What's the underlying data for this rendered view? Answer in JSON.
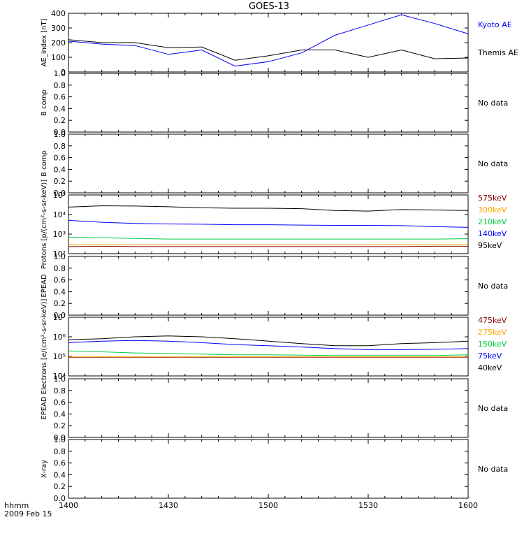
{
  "title": "GOES-13",
  "footer": {
    "hhmm": "hhmm",
    "date": "2009 Feb 15"
  },
  "x_ticks": [
    "1400",
    "1430",
    "1500",
    "1530",
    "1600"
  ],
  "colors": {
    "blue": "#0000ff",
    "black": "#000000",
    "green": "#00cc44",
    "orange": "#ffa500",
    "darkred": "#8b0000",
    "red": "#ff0000"
  },
  "chart_data": [
    {
      "type": "line",
      "ylabel": "AE_index [nT]",
      "ylim": [
        0,
        400
      ],
      "yticks": [
        "0",
        "100",
        "200",
        "300",
        "400"
      ],
      "x": [
        "1400",
        "1410",
        "1420",
        "1430",
        "1440",
        "1450",
        "1500",
        "1510",
        "1520",
        "1530",
        "1540",
        "1550",
        "1600"
      ],
      "series": [
        {
          "name": "Kyoto AE",
          "color": "#0000ff",
          "values": [
            210,
            190,
            180,
            120,
            150,
            40,
            70,
            130,
            250,
            320,
            390,
            330,
            260
          ]
        },
        {
          "name": "Themis AE",
          "color": "#000000",
          "values": [
            220,
            200,
            200,
            165,
            170,
            80,
            110,
            150,
            150,
            100,
            150,
            90,
            95
          ]
        }
      ]
    },
    {
      "type": "line",
      "ylabel": "B comp",
      "ylim": [
        0,
        1
      ],
      "yticks": [
        "0.0",
        "0.2",
        "0.4",
        "0.6",
        "0.8",
        "1.0"
      ],
      "note": "No data",
      "series": []
    },
    {
      "type": "line",
      "ylabel": "B comp",
      "ylim": [
        0,
        1
      ],
      "yticks": [
        "0.0",
        "0.2",
        "0.4",
        "0.6",
        "0.8",
        "1.0"
      ],
      "note": "No data",
      "series": []
    },
    {
      "type": "line",
      "ylabel": "Protons [p/(cm²-s-sr-keV)]",
      "ylim": [
        100,
        100000
      ],
      "yticks": [
        "10²",
        "10³",
        "10⁴",
        "10⁵"
      ],
      "x": [
        "1400",
        "1410",
        "1420",
        "1430",
        "1440",
        "1450",
        "1500",
        "1510",
        "1520",
        "1530",
        "1540",
        "1550",
        "1600"
      ],
      "series": [
        {
          "name": "575keV",
          "color": "#8b0000",
          "values": [
            230,
            240,
            230,
            230,
            230,
            230,
            230,
            230,
            230,
            230,
            230,
            240,
            240
          ]
        },
        {
          "name": "300keV",
          "color": "#ffa500",
          "values": [
            290,
            290,
            280,
            280,
            280,
            280,
            280,
            280,
            280,
            280,
            290,
            290,
            290
          ]
        },
        {
          "name": "210keV",
          "color": "#00cc44",
          "values": [
            700,
            650,
            600,
            560,
            560,
            560,
            560,
            560,
            560,
            560,
            560,
            560,
            580
          ]
        },
        {
          "name": "140keV",
          "color": "#0000ff",
          "values": [
            5000,
            4000,
            3500,
            3300,
            3200,
            3000,
            3000,
            2900,
            2800,
            2800,
            2700,
            2400,
            2200
          ]
        },
        {
          "name": "95keV",
          "color": "#000000",
          "values": [
            24000,
            28000,
            27000,
            25000,
            22000,
            21000,
            21000,
            20000,
            16000,
            15000,
            18000,
            17000,
            16000
          ]
        }
      ]
    },
    {
      "type": "line",
      "ylabel": "EPEAD",
      "ylim": [
        0,
        1
      ],
      "yticks": [
        "0.0",
        "0.2",
        "0.4",
        "0.6",
        "0.8",
        "1.0"
      ],
      "note": "No data",
      "series": []
    },
    {
      "type": "line",
      "ylabel": "Electrons [e/(cm²-s-sr-keV)]",
      "ylim": [
        10000,
        10000000
      ],
      "yticks": [
        "10⁴",
        "10⁵",
        "10⁶",
        "10⁷"
      ],
      "x": [
        "1400",
        "1410",
        "1420",
        "1430",
        "1440",
        "1450",
        "1500",
        "1510",
        "1520",
        "1530",
        "1540",
        "1550",
        "1600"
      ],
      "series": [
        {
          "name": "475keV",
          "color": "#8b0000",
          "values": [
            90000,
            90000,
            90000,
            90000,
            90000,
            90000,
            90000,
            90000,
            90000,
            90000,
            90000,
            90000,
            90000
          ]
        },
        {
          "name": "275keV",
          "color": "#ffa500",
          "values": [
            95000,
            95000,
            95000,
            95000,
            95000,
            95000,
            95000,
            95000,
            95000,
            95000,
            95000,
            95000,
            95000
          ]
        },
        {
          "name": "150keV",
          "color": "#00cc44",
          "values": [
            190000,
            170000,
            150000,
            140000,
            130000,
            120000,
            120000,
            115000,
            110000,
            110000,
            110000,
            110000,
            120000
          ]
        },
        {
          "name": "75keV",
          "color": "#0000ff",
          "values": [
            500000,
            600000,
            650000,
            600000,
            500000,
            400000,
            350000,
            300000,
            250000,
            220000,
            220000,
            230000,
            250000
          ]
        },
        {
          "name": "40keV",
          "color": "#000000",
          "values": [
            700000,
            800000,
            1000000,
            1100000,
            1000000,
            800000,
            600000,
            450000,
            350000,
            350000,
            450000,
            500000,
            600000
          ]
        }
      ]
    },
    {
      "type": "line",
      "ylabel": "EPEAD",
      "ylim": [
        0,
        1
      ],
      "yticks": [
        "0.0",
        "0.2",
        "0.4",
        "0.6",
        "0.8",
        "1.0"
      ],
      "note": "No data",
      "series": []
    },
    {
      "type": "line",
      "ylabel": "X-ray",
      "ylim": [
        0,
        1
      ],
      "yticks": [
        "0.0",
        "0.2",
        "0.4",
        "0.6",
        "0.8",
        "1.0"
      ],
      "note": "No data",
      "series": []
    }
  ]
}
